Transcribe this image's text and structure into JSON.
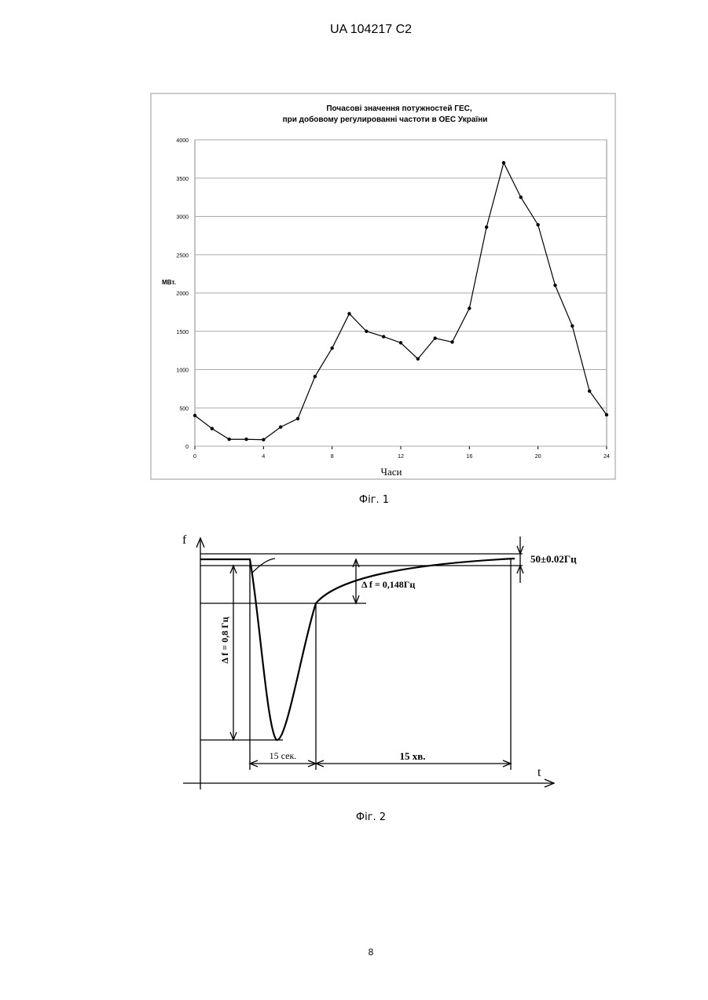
{
  "header": {
    "title": "UA   104217   C2"
  },
  "chart_data": {
    "type": "line",
    "title": "Почасові значення потужностей ГЕС,",
    "subtitle": "при добовому регулированні частоти в ОЕС України",
    "y_label": "МВт.",
    "x_label": "Часи",
    "x": [
      0,
      1,
      2,
      3,
      4,
      5,
      6,
      7,
      8,
      9,
      10,
      11,
      12,
      13,
      14,
      15,
      16,
      17,
      18,
      19,
      20,
      21,
      22,
      23,
      24
    ],
    "values": [
      400,
      230,
      90,
      90,
      85,
      250,
      360,
      910,
      1280,
      1730,
      1500,
      1430,
      1350,
      1140,
      1410,
      1360,
      1800,
      2860,
      3700,
      3250,
      2890,
      2100,
      1570,
      720,
      410
    ],
    "color": "#000000",
    "xlim": [
      0,
      24
    ],
    "xticks": [
      0,
      4,
      8,
      12,
      16,
      20,
      24
    ],
    "ylim": [
      0,
      4000
    ],
    "yticks": [
      0,
      500,
      1000,
      1500,
      2000,
      2500,
      3000,
      3500,
      4000
    ],
    "grid": true
  },
  "figure1": {
    "caption": "Фіг. 1"
  },
  "figure2": {
    "caption": "Фіг. 2",
    "f_axis": "f",
    "t_axis": "t",
    "band": "50±0.02Гц",
    "delta_small": "Δ f = 0,148Гц",
    "delta_large": "Δ f = 0,8 Гц",
    "time_short": "15 сек.",
    "time_long": "15   хв."
  },
  "footer": {
    "page": "8"
  }
}
